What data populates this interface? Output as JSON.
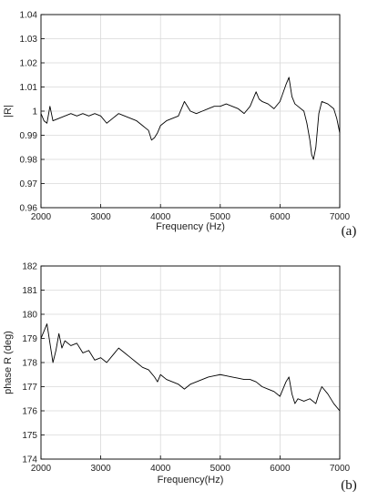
{
  "chart_data": [
    {
      "type": "line",
      "panel_tag": "(a)",
      "xlabel": "Frequency (Hz)",
      "ylabel": "|R|",
      "xlim": [
        2000,
        7000
      ],
      "ylim": [
        0.96,
        1.04
      ],
      "x_ticks": [
        "2000",
        "3000",
        "4000",
        "5000",
        "6000",
        "7000"
      ],
      "y_ticks": [
        "0.96",
        "0.97",
        "0.98",
        "0.99",
        "1",
        "1.01",
        "1.02",
        "1.03",
        "1.04"
      ],
      "grid": true,
      "series": [
        {
          "x": [
            2000,
            2050,
            2100,
            2150,
            2200,
            2300,
            2400,
            2500,
            2600,
            2700,
            2800,
            2900,
            3000,
            3100,
            3200,
            3300,
            3400,
            3500,
            3600,
            3700,
            3750,
            3800,
            3850,
            3900,
            3950,
            4000,
            4100,
            4200,
            4300,
            4400,
            4500,
            4600,
            4700,
            4800,
            4900,
            5000,
            5100,
            5200,
            5300,
            5400,
            5500,
            5600,
            5650,
            5700,
            5800,
            5900,
            6000,
            6100,
            6150,
            6200,
            6250,
            6300,
            6400,
            6450,
            6500,
            6530,
            6560,
            6600,
            6650,
            6700,
            6800,
            6900,
            6950,
            7000
          ],
          "y": [
            0.999,
            0.996,
            0.995,
            1.002,
            0.996,
            0.997,
            0.998,
            0.999,
            0.998,
            0.999,
            0.998,
            0.999,
            0.998,
            0.995,
            0.997,
            0.999,
            0.998,
            0.997,
            0.996,
            0.994,
            0.993,
            0.992,
            0.988,
            0.989,
            0.991,
            0.994,
            0.996,
            0.997,
            0.998,
            1.004,
            1.0,
            0.999,
            1.0,
            1.001,
            1.002,
            1.002,
            1.003,
            1.002,
            1.001,
            0.999,
            1.002,
            1.008,
            1.005,
            1.004,
            1.003,
            1.001,
            1.004,
            1.011,
            1.014,
            1.006,
            1.003,
            1.002,
            1.0,
            0.995,
            0.988,
            0.982,
            0.98,
            0.985,
            0.999,
            1.004,
            1.003,
            1.001,
            0.997,
            0.991
          ]
        }
      ]
    },
    {
      "type": "line",
      "panel_tag": "(b)",
      "xlabel": "Frequency(Hz)",
      "ylabel": "phase R (deg)",
      "xlim": [
        2000,
        7000
      ],
      "ylim": [
        174,
        182
      ],
      "x_ticks": [
        "2000",
        "3000",
        "4000",
        "5000",
        "6000",
        "7000"
      ],
      "y_ticks": [
        "174",
        "175",
        "176",
        "177",
        "178",
        "179",
        "180",
        "181",
        "182"
      ],
      "grid": true,
      "series": [
        {
          "x": [
            2000,
            2050,
            2100,
            2150,
            2200,
            2250,
            2300,
            2350,
            2400,
            2500,
            2600,
            2700,
            2800,
            2900,
            3000,
            3100,
            3200,
            3300,
            3400,
            3500,
            3600,
            3700,
            3800,
            3900,
            3950,
            4000,
            4100,
            4200,
            4300,
            4400,
            4500,
            4600,
            4700,
            4800,
            4900,
            5000,
            5100,
            5200,
            5300,
            5400,
            5500,
            5600,
            5700,
            5800,
            5900,
            6000,
            6100,
            6150,
            6200,
            6250,
            6300,
            6400,
            6500,
            6600,
            6650,
            6700,
            6800,
            6900,
            7000
          ],
          "y": [
            179.0,
            179.3,
            179.6,
            178.8,
            178.0,
            178.5,
            179.2,
            178.6,
            178.9,
            178.7,
            178.8,
            178.4,
            178.5,
            178.1,
            178.2,
            178.0,
            178.3,
            178.6,
            178.4,
            178.2,
            178.0,
            177.8,
            177.7,
            177.4,
            177.2,
            177.5,
            177.3,
            177.2,
            177.1,
            176.9,
            177.1,
            177.2,
            177.3,
            177.4,
            177.45,
            177.5,
            177.45,
            177.4,
            177.35,
            177.3,
            177.3,
            177.2,
            177.0,
            176.9,
            176.8,
            176.6,
            177.2,
            177.4,
            176.7,
            176.3,
            176.5,
            176.4,
            176.5,
            176.3,
            176.7,
            177.0,
            176.7,
            176.3,
            176.0
          ]
        }
      ]
    }
  ]
}
